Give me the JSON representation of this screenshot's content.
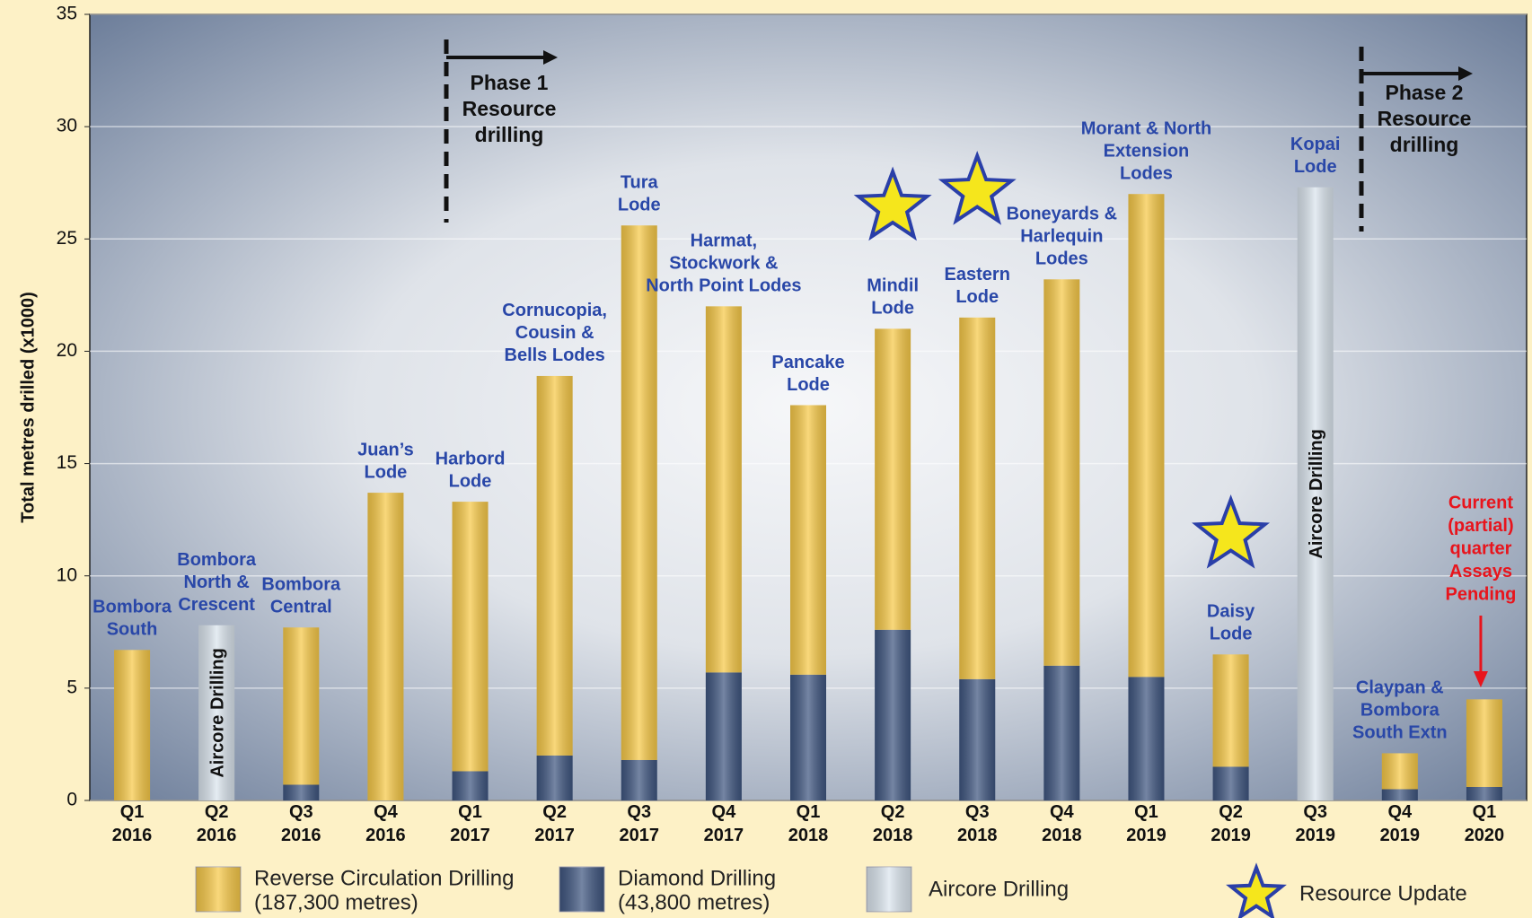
{
  "chart_data": {
    "type": "stacked_bar",
    "y_label": "Total metres drilled (x1000)",
    "categories": [
      "Q1 2016",
      "Q2 2016",
      "Q3 2016",
      "Q4 2016",
      "Q1 2017",
      "Q2 2017",
      "Q3 2017",
      "Q4 2017",
      "Q1 2018",
      "Q2 2018",
      "Q3 2018",
      "Q4 2018",
      "Q1 2019",
      "Q2 2019",
      "Q3 2019",
      "Q4 2019",
      "Q1 2020"
    ],
    "series": [
      {
        "name": "Reverse Circulation Drilling",
        "total_label": "(187,300 metres)",
        "color": "#f7c948",
        "values": [
          6.7,
          null,
          7.0,
          13.7,
          12.0,
          16.9,
          23.8,
          16.3,
          12.0,
          13.4,
          16.1,
          17.2,
          21.5,
          5.0,
          null,
          1.6,
          3.9
        ]
      },
      {
        "name": "Diamond Drilling",
        "total_label": "(43,800 metres)",
        "color": "#3f5680",
        "values": [
          null,
          null,
          0.7,
          null,
          1.3,
          2.0,
          1.8,
          5.7,
          5.6,
          7.6,
          5.4,
          6.0,
          5.5,
          1.5,
          null,
          0.5,
          0.6
        ]
      },
      {
        "name": "Aircore Drilling",
        "color": "#dbe5ee",
        "values": [
          null,
          7.8,
          null,
          null,
          null,
          null,
          null,
          null,
          null,
          null,
          null,
          null,
          null,
          null,
          27.3,
          null,
          null
        ]
      }
    ],
    "bar_labels": [
      [
        "Bombora",
        "South"
      ],
      [
        "Bombora",
        "North &",
        "Crescent"
      ],
      [
        "Bombora",
        "Central"
      ],
      [
        "Juan’s",
        "Lode"
      ],
      [
        "Harbord",
        "Lode"
      ],
      [
        "Cornucopia,",
        "Cousin &",
        "Bells Lodes"
      ],
      [
        "Tura",
        "Lode"
      ],
      [
        "Harmat,",
        "Stockwork &",
        "North Point Lodes"
      ],
      [
        "Pancake",
        "Lode"
      ],
      [
        "Mindil",
        "Lode"
      ],
      [
        "Eastern",
        "Lode"
      ],
      [
        "Boneyards &",
        "Harlequin",
        "Lodes"
      ],
      [
        "Morant & North",
        "Extension",
        "Lodes"
      ],
      [
        "Daisy",
        "Lode"
      ],
      [
        "Kopai",
        "Lode"
      ],
      [
        "Claypan &",
        "Bombora",
        "South Extn"
      ],
      null
    ],
    "markers": {
      "name": "Resource Update",
      "color": "#f5e61c",
      "categories": [
        "Q2 2018",
        "Q3 2018",
        "Q2 2019"
      ],
      "values": [
        26.4,
        27.1,
        11.8
      ]
    },
    "phases": [
      [
        "Phase 1",
        "Resource",
        "drilling"
      ],
      [
        "Phase 2",
        "Resource",
        "drilling"
      ]
    ],
    "note": [
      "Current",
      "(partial)",
      "quarter",
      "Assays",
      "Pending"
    ],
    "ylim": [
      0,
      35
    ],
    "yticks": [
      0,
      5,
      10,
      15,
      20,
      25,
      30,
      35
    ],
    "grid": true
  }
}
